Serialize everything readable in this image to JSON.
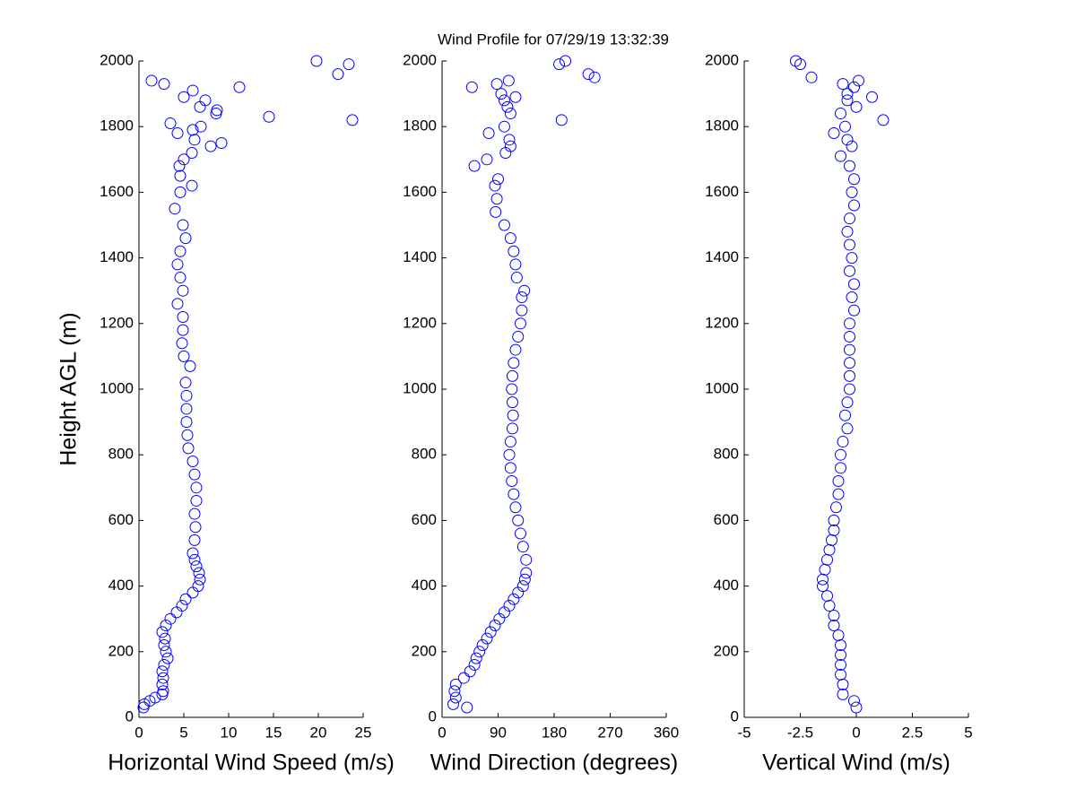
{
  "title": "Wind Profile for  07/29/19 13:32:39",
  "chart_data": [
    {
      "type": "scatter",
      "xlabel": "Horizontal Wind Speed (m/s)",
      "ylabel": "Height AGL (m)",
      "color": "#0000ff",
      "xlim": [
        0,
        25
      ],
      "xticks": [
        0,
        5,
        10,
        15,
        20,
        25
      ],
      "ylim": [
        0,
        2000
      ],
      "yticks": [
        0,
        200,
        400,
        600,
        800,
        1000,
        1200,
        1400,
        1600,
        1800,
        2000
      ],
      "x": [
        0.5,
        0.6,
        1.2,
        1.8,
        2.6,
        2.7,
        2.6,
        2.7,
        2.6,
        2.8,
        3.2,
        3.0,
        2.8,
        2.9,
        2.6,
        3.0,
        3.5,
        4.2,
        4.8,
        5.2,
        6.0,
        6.6,
        6.8,
        6.7,
        6.4,
        6.2,
        6.0,
        6.2,
        6.3,
        6.2,
        6.4,
        6.4,
        6.2,
        6.0,
        5.5,
        5.4,
        5.3,
        5.3,
        5.3,
        5.2,
        5.7,
        5.0,
        4.8,
        4.9,
        4.9,
        4.3,
        4.9,
        4.6,
        4.3,
        4.6,
        5.2,
        4.9,
        4.0,
        4.6,
        5.9,
        4.6,
        4.5,
        5.0,
        5.9,
        8.0,
        9.2,
        6.2,
        4.3,
        6.0,
        6.9,
        3.5,
        23.8,
        14.5,
        8.6,
        8.7,
        6.8,
        7.4,
        5.0,
        6.0,
        11.2,
        2.8,
        1.4,
        22.2,
        23.4,
        19.8
      ],
      "values": [
        30,
        40,
        50,
        60,
        70,
        80,
        100,
        120,
        140,
        160,
        180,
        200,
        220,
        240,
        260,
        280,
        300,
        320,
        340,
        360,
        380,
        400,
        420,
        440,
        460,
        480,
        500,
        540,
        580,
        620,
        660,
        700,
        740,
        780,
        820,
        860,
        900,
        940,
        980,
        1020,
        1070,
        1100,
        1140,
        1180,
        1220,
        1260,
        1300,
        1340,
        1380,
        1420,
        1460,
        1500,
        1550,
        1600,
        1620,
        1650,
        1680,
        1700,
        1720,
        1740,
        1750,
        1760,
        1780,
        1790,
        1800,
        1810,
        1820,
        1830,
        1840,
        1850,
        1860,
        1880,
        1890,
        1910,
        1920,
        1930,
        1940,
        1960,
        1990,
        2000
      ]
    },
    {
      "type": "scatter",
      "xlabel": "Wind Direction (degrees)",
      "color": "#0000ff",
      "xlim": [
        0,
        360
      ],
      "xticks": [
        0,
        90,
        180,
        270,
        360
      ],
      "ylim": [
        0,
        2000
      ],
      "yticks": [
        0,
        200,
        400,
        600,
        800,
        1000,
        1200,
        1400,
        1600,
        1800,
        2000
      ],
      "x": [
        40,
        18,
        22,
        20,
        22,
        35,
        45,
        52,
        55,
        60,
        65,
        72,
        78,
        85,
        92,
        100,
        108,
        115,
        122,
        130,
        133,
        135,
        135,
        130,
        126,
        122,
        118,
        115,
        112,
        110,
        108,
        110,
        113,
        114,
        113,
        112,
        113,
        115,
        118,
        122,
        126,
        128,
        128,
        132,
        120,
        118,
        115,
        110,
        100,
        86,
        88,
        85,
        90,
        52,
        72,
        102,
        110,
        108,
        75,
        100,
        192,
        110,
        105,
        100,
        118,
        95,
        48,
        88,
        107,
        245,
        235,
        188,
        198
      ],
      "values": [
        30,
        40,
        60,
        80,
        100,
        120,
        140,
        160,
        180,
        200,
        220,
        240,
        260,
        280,
        300,
        320,
        340,
        360,
        380,
        400,
        420,
        440,
        480,
        520,
        560,
        600,
        640,
        680,
        720,
        760,
        800,
        840,
        880,
        920,
        960,
        1000,
        1040,
        1080,
        1120,
        1160,
        1200,
        1240,
        1280,
        1300,
        1340,
        1380,
        1420,
        1460,
        1500,
        1540,
        1580,
        1620,
        1640,
        1680,
        1700,
        1720,
        1740,
        1760,
        1780,
        1800,
        1820,
        1840,
        1860,
        1880,
        1890,
        1900,
        1920,
        1930,
        1940,
        1950,
        1960,
        1990,
        2000
      ]
    },
    {
      "type": "scatter",
      "xlabel": "Vertical Wind (m/s)",
      "color": "#0000ff",
      "xlim": [
        -5,
        5
      ],
      "xticks": [
        -5,
        -2.5,
        0,
        2.5,
        5
      ],
      "ylim": [
        0,
        2000
      ],
      "yticks": [
        0,
        200,
        400,
        600,
        800,
        1000,
        1200,
        1400,
        1600,
        1800,
        2000
      ],
      "x": [
        0,
        -0.1,
        -0.6,
        -0.6,
        -0.7,
        -0.7,
        -0.7,
        -0.7,
        -0.8,
        -1.0,
        -1.0,
        -1.2,
        -1.3,
        -1.5,
        -1.5,
        -1.4,
        -1.3,
        -1.2,
        -1.1,
        -1.0,
        -1.0,
        -0.9,
        -0.8,
        -0.8,
        -0.7,
        -0.7,
        -0.6,
        -0.4,
        -0.5,
        -0.4,
        -0.3,
        -0.3,
        -0.3,
        -0.3,
        -0.3,
        -0.3,
        -0.1,
        -0.2,
        -0.1,
        -0.3,
        -0.2,
        -0.3,
        -0.4,
        -0.3,
        -0.1,
        -0.2,
        -0.1,
        -0.3,
        -0.7,
        -0.2,
        -0.4,
        -1.0,
        -0.5,
        1.2,
        -0.7,
        0.0,
        -0.4,
        0.7,
        -0.4,
        -0.1,
        -0.6,
        0.1,
        -2.0,
        -2.5,
        -2.7
      ],
      "values": [
        30,
        50,
        70,
        100,
        130,
        160,
        190,
        220,
        250,
        280,
        310,
        340,
        370,
        400,
        420,
        450,
        480,
        510,
        540,
        570,
        600,
        640,
        680,
        720,
        760,
        800,
        840,
        880,
        920,
        960,
        1000,
        1040,
        1080,
        1120,
        1160,
        1200,
        1240,
        1280,
        1320,
        1360,
        1400,
        1440,
        1480,
        1520,
        1560,
        1600,
        1640,
        1680,
        1710,
        1740,
        1760,
        1780,
        1800,
        1820,
        1840,
        1860,
        1880,
        1890,
        1900,
        1920,
        1930,
        1940,
        1950,
        1990,
        2000
      ]
    }
  ]
}
